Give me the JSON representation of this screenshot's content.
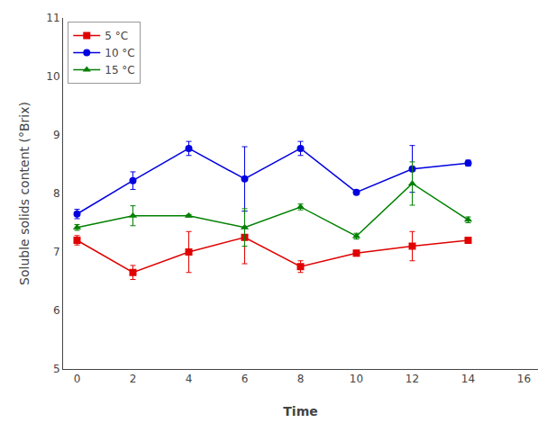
{
  "chart_data": {
    "type": "line",
    "xlabel": "Time",
    "ylabel": "Soluble solids content (°Brix)",
    "x": [
      0,
      2,
      4,
      6,
      8,
      10,
      12,
      14
    ],
    "series": [
      {
        "name": "5 °C",
        "color": "#e00000",
        "marker": "square",
        "values": [
          7.2,
          6.65,
          7.0,
          7.25,
          6.75,
          6.98,
          7.1,
          7.2
        ],
        "yerr": [
          0.08,
          0.12,
          0.35,
          0.45,
          0.1,
          0.05,
          0.25,
          0.05
        ]
      },
      {
        "name": "10 °C",
        "color": "#0000e0",
        "marker": "circle",
        "values": [
          7.65,
          8.22,
          8.77,
          8.25,
          8.77,
          8.02,
          8.42,
          8.52
        ],
        "yerr": [
          0.08,
          0.15,
          0.12,
          0.55,
          0.12,
          0.02,
          0.4,
          0.05
        ]
      },
      {
        "name": "15 °C",
        "color": "#008000",
        "marker": "triangle-up",
        "values": [
          7.42,
          7.62,
          7.62,
          7.42,
          7.77,
          7.27,
          8.17,
          7.55
        ],
        "yerr": [
          0.05,
          0.17,
          0.02,
          0.32,
          0.05,
          0.05,
          0.37,
          0.05
        ]
      }
    ],
    "xlim": [
      -0.5,
      16.5
    ],
    "ylim": [
      5,
      11
    ],
    "xticks": [
      0,
      2,
      4,
      6,
      8,
      10,
      12,
      14,
      16
    ],
    "yticks": [
      5,
      6,
      7,
      8,
      9,
      10,
      11
    ],
    "legend": "upper left",
    "grid": false
  }
}
